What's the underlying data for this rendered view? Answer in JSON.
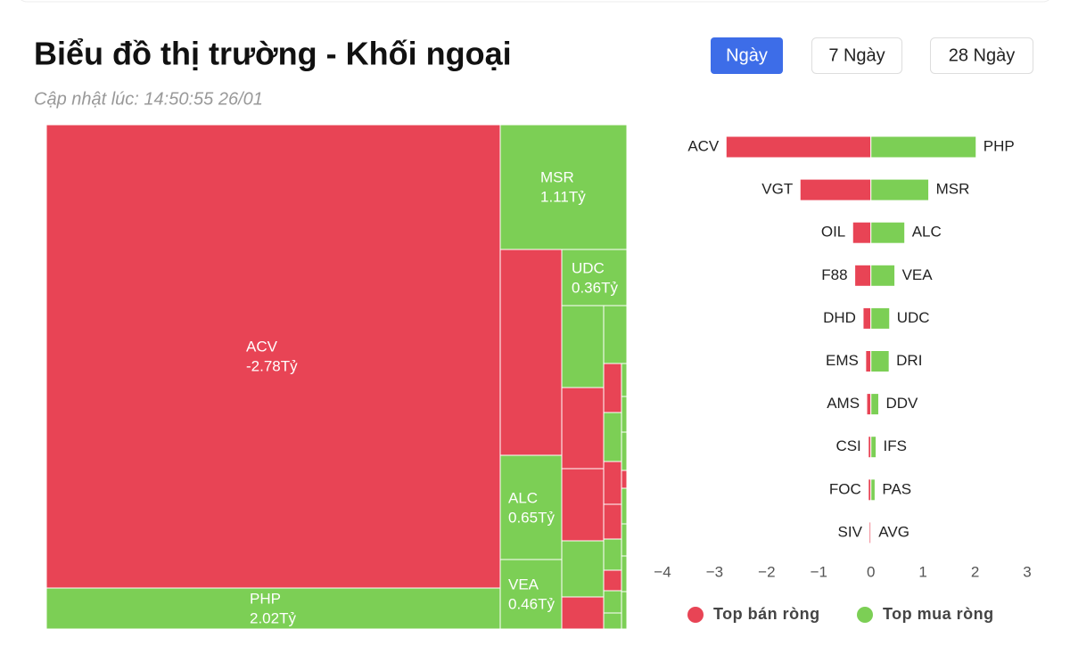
{
  "header": {
    "title": "Biểu đồ thị trường - Khối ngoại",
    "updated": "Cập nhật lúc: 14:50:55 26/01"
  },
  "tabs": [
    "Ngày",
    "7 Ngày",
    "28 Ngày"
  ],
  "chart_data": [
    {
      "type": "treemap",
      "categories": [
        "ACV",
        "PHP",
        "MSR",
        "ALC",
        "VEA",
        "UDC"
      ],
      "values": [
        -2.78,
        2.02,
        1.11,
        0.65,
        0.46,
        0.36
      ],
      "value_labels": [
        "-2.78Tỷ",
        "2.02Tỷ",
        "1.11Tỷ",
        "0.65Tỷ",
        "0.46Tỷ",
        "0.36Tỷ"
      ],
      "negative_color": "#e84455",
      "positive_color": "#7ccf55"
    },
    {
      "type": "diverging-bar",
      "series": [
        {
          "name": "Top bán ròng",
          "color": "#e84455",
          "categories": [
            "ACV",
            "VGT",
            "OIL",
            "F88",
            "DHD",
            "EMS",
            "AMS",
            "CSI",
            "FOC",
            "SIV"
          ],
          "values": [
            -2.78,
            -1.36,
            -0.35,
            -0.31,
            -0.15,
            -0.1,
            -0.08,
            -0.05,
            -0.05,
            -0.03
          ]
        },
        {
          "name": "Top mua ròng",
          "color": "#7ccf55",
          "categories": [
            "PHP",
            "MSR",
            "ALC",
            "VEA",
            "UDC",
            "DRI",
            "DDV",
            "IFS",
            "PAS",
            "AVG"
          ],
          "values": [
            2.02,
            1.11,
            0.65,
            0.46,
            0.36,
            0.35,
            0.15,
            0.1,
            0.08,
            0.01
          ]
        }
      ],
      "xlim": [
        -4,
        3
      ],
      "xticks": [
        {
          "value": -4,
          "label": "−4"
        },
        {
          "value": -3,
          "label": "−3"
        },
        {
          "value": -2,
          "label": "−2"
        },
        {
          "value": -1,
          "label": "−1"
        },
        0,
        1,
        2,
        3
      ]
    }
  ]
}
